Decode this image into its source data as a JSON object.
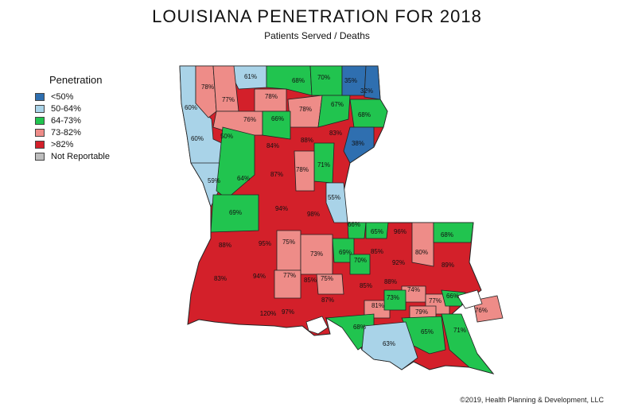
{
  "title": "LOUISIANA PENETRATION FOR 2018",
  "subtitle": "Patients Served / Deaths",
  "legend": {
    "title": "Penetration",
    "items": [
      {
        "label": "<50%",
        "color": "#2f6fb0"
      },
      {
        "label": "50-64%",
        "color": "#a9d3e8"
      },
      {
        "label": "64-73%",
        "color": "#21c44f"
      },
      {
        "label": "73-82%",
        "color": "#ee8c88"
      },
      {
        "label": ">82%",
        "color": "#d3202a"
      },
      {
        "label": "Not Reportable",
        "color": "#bdbdbd"
      }
    ]
  },
  "parish_labels": [
    "78%",
    "61%",
    "68%",
    "70%",
    "35%",
    "32%",
    "77%",
    "78%",
    "60%",
    "76%",
    "66%",
    "78%",
    "67%",
    "68%",
    "60%",
    "50%",
    "84%",
    "88%",
    "83%",
    "38%",
    "87%",
    "78%",
    "71%",
    "59%",
    "64%",
    "55%",
    "69%",
    "94%",
    "98%",
    "66%",
    "65%",
    "96%",
    "68%",
    "88%",
    "95%",
    "75%",
    "73%",
    "80%",
    "69%",
    "85%",
    "70%",
    "92%",
    "89%",
    "83%",
    "94%",
    "77%",
    "85%",
    "75%",
    "85%",
    "88%",
    "74%",
    "66%",
    "120%",
    "97%",
    "87%",
    "81%",
    "73%",
    "77%",
    "79%",
    "76%",
    "68%",
    "65%",
    "71%",
    "63%"
  ],
  "credit": "©2019, Health Planning & Development, LLC"
}
